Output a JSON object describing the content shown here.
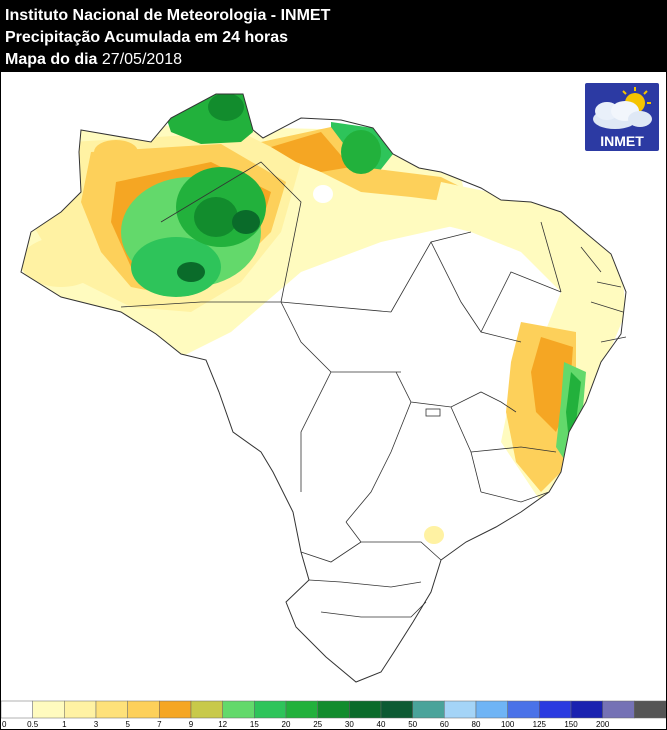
{
  "header": {
    "line1": "Instituto Nacional de Meteorologia - INMET",
    "line2": "Precipitação Acumulada em 24 horas",
    "line3_label": "Mapa do dia ",
    "line3_date": "27/05/2018"
  },
  "logo": {
    "text": "INMET",
    "icon": "sun-cloud-icon"
  },
  "colors": {
    "c05": "#fffbbf",
    "c1": "#fff2a3",
    "c3": "#fee17a",
    "c5": "#fdd05a",
    "c7": "#f5a623",
    "c9": "#c8c94a",
    "c12": "#63d96b",
    "c15": "#2ec45a",
    "c20": "#22b13c",
    "c25": "#128c2d",
    "c30": "#0a6b2a",
    "c40": "#0d5a33",
    "border": "#333333"
  },
  "legend": {
    "labels": [
      "0",
      "0.5",
      "1",
      "3",
      "5",
      "7",
      "9",
      "12",
      "15",
      "20",
      "25",
      "30",
      "40",
      "50",
      "60",
      "80",
      "100",
      "125",
      "150",
      "200"
    ],
    "colors": [
      "#ffffff",
      "#fffbbf",
      "#fff2a3",
      "#fee17a",
      "#fdd05a",
      "#f5a623",
      "#c8c94a",
      "#63d96b",
      "#2ec45a",
      "#22b13c",
      "#128c2d",
      "#0a6b2a",
      "#0d5a33",
      "#4aa39a",
      "#a4d4f7",
      "#6fb4f5",
      "#4a72e8",
      "#2a3ae0",
      "#1a22b0",
      "#7572b5",
      "#555555"
    ]
  }
}
